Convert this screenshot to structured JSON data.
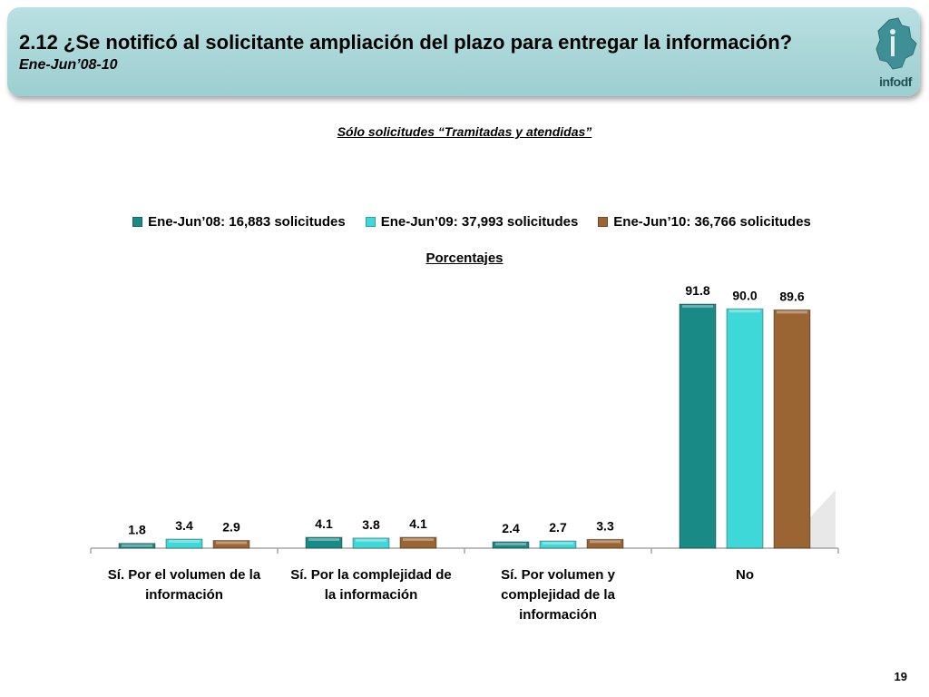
{
  "header": {
    "title": "2.12 ¿Se notificó al solicitante ampliación del plazo para entregar la información?",
    "subtitle": "Ene-Jun’08-10"
  },
  "logo": {
    "text": "infodf"
  },
  "note": "Sólo solicitudes “Tramitadas y atendidas”",
  "page_number": "19",
  "colors": {
    "s1": "#1a8a86",
    "s2": "#3ed8d8",
    "s3": "#9a6533"
  },
  "chart_data": {
    "type": "bar",
    "title": "",
    "unit_label": "Porcentajes",
    "categories": [
      [
        "Sí. Por el volumen de la",
        "información"
      ],
      [
        "Sí. Por la complejidad de",
        "la información"
      ],
      [
        "Sí. Por volumen y",
        "complejidad de la",
        "información"
      ],
      [
        "No"
      ]
    ],
    "series": [
      {
        "name": "Ene-Jun’08: 16,883 solicitudes",
        "values": [
          1.8,
          4.1,
          2.4,
          91.8
        ]
      },
      {
        "name": "Ene-Jun’09: 37,993 solicitudes",
        "values": [
          3.4,
          3.8,
          2.7,
          90.0
        ]
      },
      {
        "name": "Ene-Jun’10: 36,766 solicitudes",
        "values": [
          2.9,
          4.1,
          3.3,
          89.6
        ]
      }
    ],
    "ylim": [
      0,
      100
    ],
    "grid": false,
    "legend": "top"
  }
}
